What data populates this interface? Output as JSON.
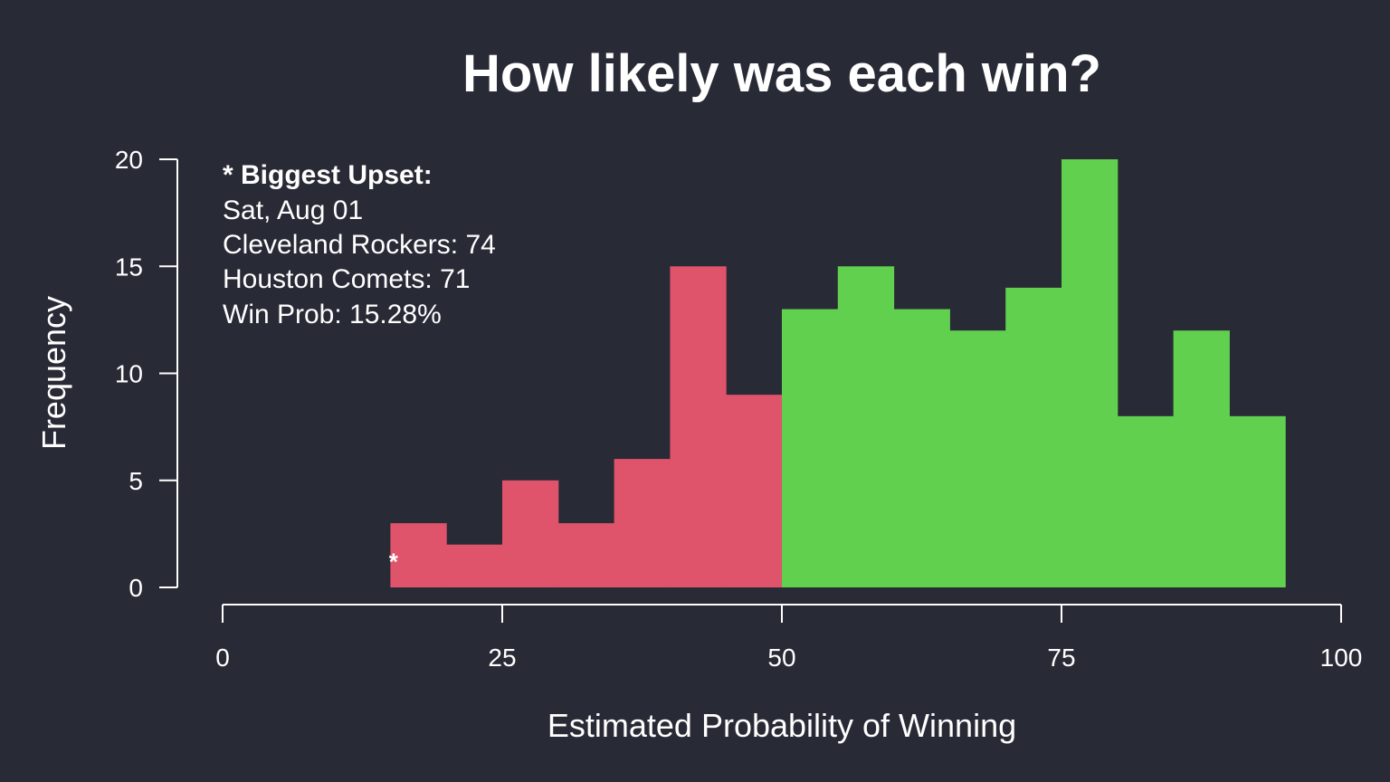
{
  "colors": {
    "background": "#282a36",
    "foreground": "#ffffff",
    "loss": "#df536b",
    "win": "#61d04f"
  },
  "chart_data": {
    "type": "bar",
    "title": "How likely was each win?",
    "xlabel": "Estimated Probability of Winning",
    "ylabel": "Frequency",
    "xlim": [
      0,
      100
    ],
    "ylim": [
      0,
      20
    ],
    "x_ticks": [
      "0",
      "25",
      "50",
      "75",
      "100"
    ],
    "y_ticks": [
      "0",
      "5",
      "10",
      "15",
      "20"
    ],
    "grid": false,
    "bin_width": 5,
    "bins": [
      {
        "start": 15,
        "end": 20,
        "count": 3,
        "group": "loss"
      },
      {
        "start": 20,
        "end": 25,
        "count": 2,
        "group": "loss"
      },
      {
        "start": 25,
        "end": 30,
        "count": 5,
        "group": "loss"
      },
      {
        "start": 30,
        "end": 35,
        "count": 3,
        "group": "loss"
      },
      {
        "start": 35,
        "end": 40,
        "count": 6,
        "group": "loss"
      },
      {
        "start": 40,
        "end": 45,
        "count": 15,
        "group": "loss"
      },
      {
        "start": 45,
        "end": 50,
        "count": 9,
        "group": "loss"
      },
      {
        "start": 50,
        "end": 55,
        "count": 13,
        "group": "win"
      },
      {
        "start": 55,
        "end": 60,
        "count": 15,
        "group": "win"
      },
      {
        "start": 60,
        "end": 65,
        "count": 13,
        "group": "win"
      },
      {
        "start": 65,
        "end": 70,
        "count": 12,
        "group": "win"
      },
      {
        "start": 70,
        "end": 75,
        "count": 14,
        "group": "win"
      },
      {
        "start": 75,
        "end": 80,
        "count": 20,
        "group": "win"
      },
      {
        "start": 80,
        "end": 85,
        "count": 8,
        "group": "win"
      },
      {
        "start": 85,
        "end": 90,
        "count": 12,
        "group": "win"
      },
      {
        "start": 90,
        "end": 95,
        "count": 8,
        "group": "win"
      }
    ],
    "marker": {
      "symbol": "*",
      "x": 15.28,
      "y": 1.5
    },
    "annotation": {
      "heading": "* Biggest Upset:",
      "lines": [
        "Sat, Aug 01",
        "Cleveland Rockers: 74",
        "Houston Comets: 71",
        "Win Prob: 15.28%"
      ]
    }
  }
}
